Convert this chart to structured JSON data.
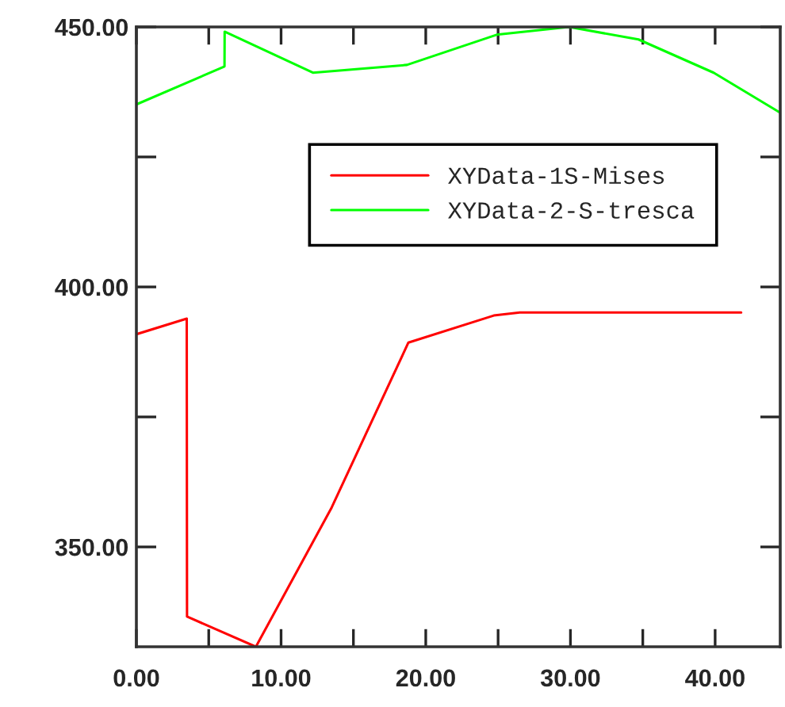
{
  "chart_data": {
    "type": "line",
    "xlim": [
      0,
      44.5
    ],
    "ylim": [
      330.8,
      450
    ],
    "xticks": [
      {
        "value": 0,
        "label": "0.00"
      },
      {
        "value": 5,
        "label": null
      },
      {
        "value": 10,
        "label": "10.00"
      },
      {
        "value": 15,
        "label": null
      },
      {
        "value": 20,
        "label": "20.00"
      },
      {
        "value": 25,
        "label": null
      },
      {
        "value": 30,
        "label": "30.00"
      },
      {
        "value": 35,
        "label": null
      },
      {
        "value": 40,
        "label": "40.00"
      }
    ],
    "yticks": [
      {
        "value": 350,
        "label": "350.00"
      },
      {
        "value": 375,
        "label": null
      },
      {
        "value": 400,
        "label": "400.00"
      },
      {
        "value": 425,
        "label": null
      },
      {
        "value": 450,
        "label": "450.00"
      }
    ],
    "grid": false,
    "legend": "top right",
    "marker": "none",
    "line_style": "solid",
    "series": [
      {
        "name": "XYData-1S-Mises",
        "color": "#ff0000",
        "x": [
          0,
          3.48,
          3.5,
          8.26,
          13.5,
          18.8,
          24.7,
          26.5,
          41.8
        ],
        "values": [
          390.9,
          393.9,
          336.6,
          330.8,
          357.6,
          389.3,
          394.5,
          395.1,
          395.1
        ]
      },
      {
        "name": "XYData-2-S-tresca",
        "color": "#00ff00",
        "x": [
          0,
          6.09,
          6.1,
          12.2,
          18.7,
          24.9,
          29.9,
          34.7,
          39.9,
          44.5
        ],
        "values": [
          435.1,
          442.4,
          449.1,
          441.2,
          442.7,
          448.5,
          450,
          447.6,
          441.2,
          433.5
        ]
      }
    ]
  }
}
